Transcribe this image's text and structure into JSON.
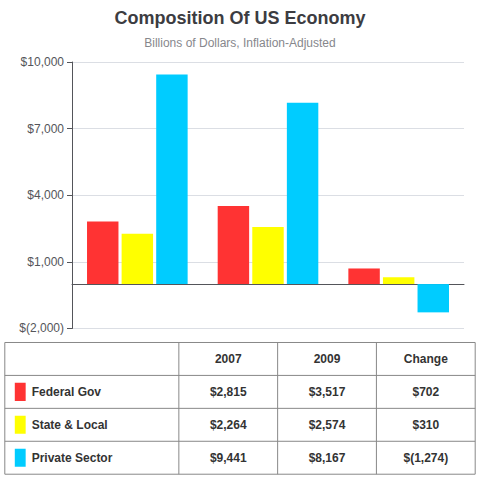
{
  "chart_data": {
    "type": "bar",
    "title": "Composition Of US Economy",
    "subtitle": "Billions of Dollars, Inflation-Adjusted",
    "categories": [
      "2007",
      "2009",
      "Change"
    ],
    "series": [
      {
        "name": "Federal Gov",
        "color": "#ff3333",
        "values": [
          2815,
          3517,
          702
        ],
        "value_labels": [
          "$2,815",
          "$3,517",
          "$702"
        ]
      },
      {
        "name": "State & Local",
        "color": "#ffff00",
        "values": [
          2264,
          2574,
          310
        ],
        "value_labels": [
          "$2,264",
          "$2,574",
          "$310"
        ]
      },
      {
        "name": "Private Sector",
        "color": "#00ccff",
        "values": [
          9441,
          8167,
          -1274
        ],
        "value_labels": [
          "$9,441",
          "$8,167",
          "$(1,274)"
        ]
      }
    ],
    "ylim": [
      -2000,
      10000
    ],
    "yticks": [
      {
        "value": -2000,
        "label": "$(2,000)"
      },
      {
        "value": 1000,
        "label": "$1,000"
      },
      {
        "value": 4000,
        "label": "$4,000"
      },
      {
        "value": 7000,
        "label": "$7,000"
      },
      {
        "value": 10000,
        "label": "$10,000"
      }
    ],
    "grid": true,
    "tick_labels": "y"
  }
}
